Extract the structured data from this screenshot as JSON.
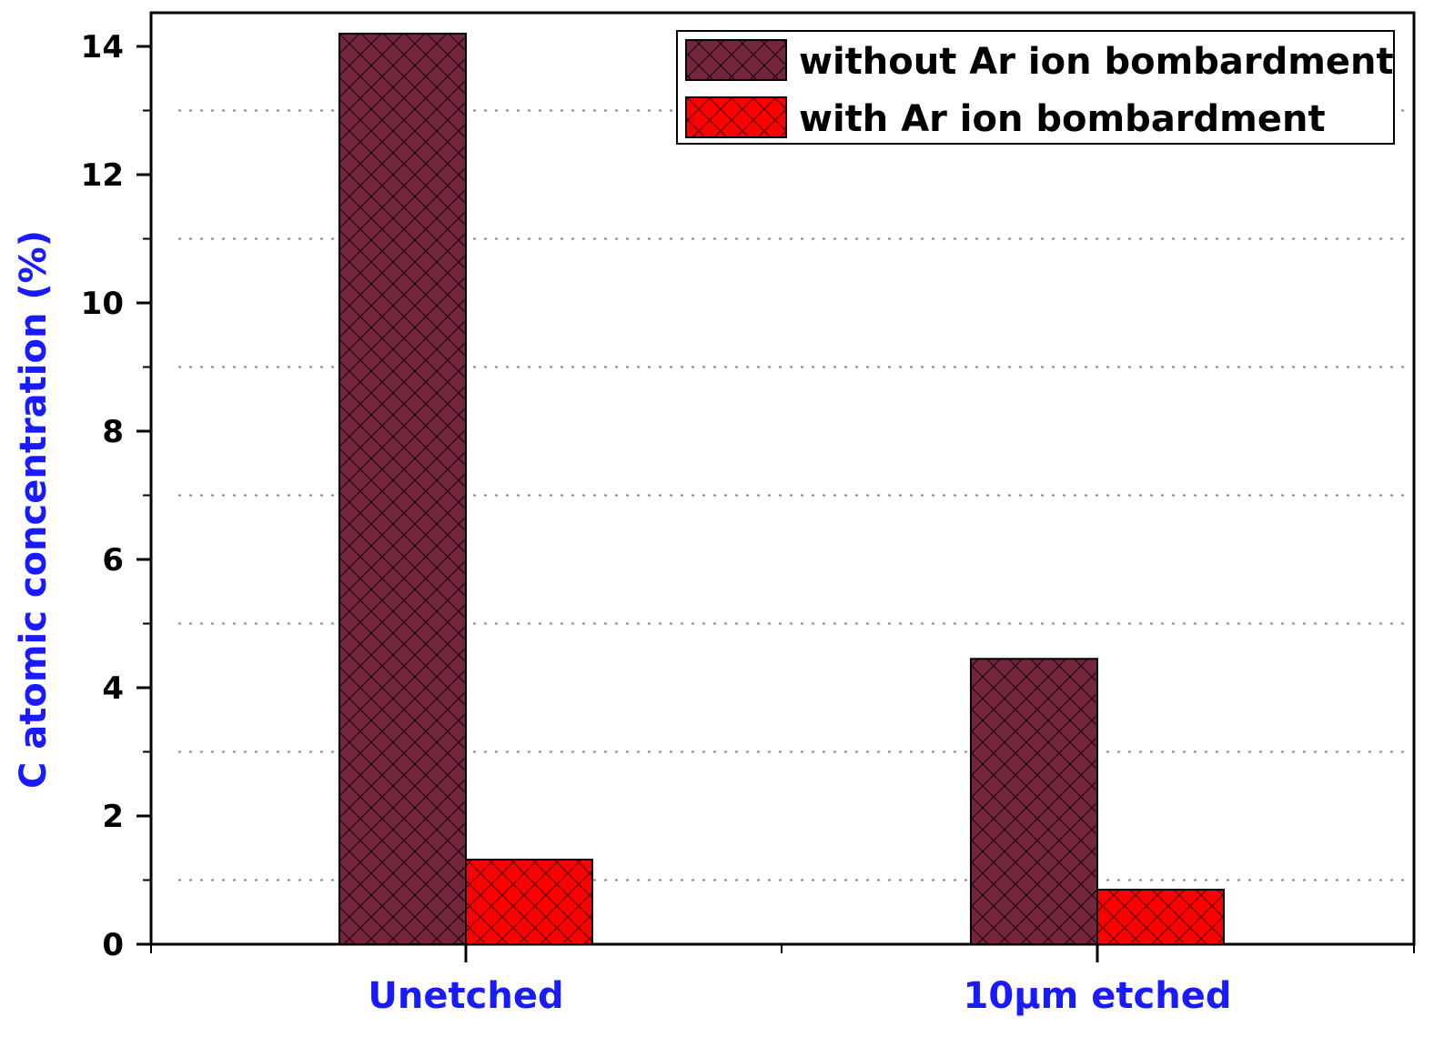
{
  "chart_data": {
    "type": "bar",
    "categories": [
      "Unetched",
      "10µm etched"
    ],
    "series": [
      {
        "name": "without Ar ion bombardment",
        "values": [
          14.2,
          4.45
        ],
        "color": "#76263c",
        "hatch": "crosshatch"
      },
      {
        "name": "with Ar ion bombardment",
        "values": [
          1.32,
          0.85
        ],
        "color": "#ff0000",
        "hatch": "crosshatch"
      }
    ],
    "title": "",
    "xlabel": "",
    "ylabel": "C atomic concentration (%)",
    "ylim": [
      0,
      14.5
    ],
    "yticks": [
      0,
      2,
      4,
      6,
      8,
      10,
      12,
      14
    ],
    "ytick_labels": [
      "0",
      "2",
      "4",
      "6",
      "8",
      "10",
      "12",
      "14"
    ],
    "minor_grid": [
      1,
      3,
      5,
      7,
      9,
      11,
      13
    ],
    "grid": "dotted horizontal at odd values",
    "legend_position": "top-right",
    "label_color": "#1a1aff"
  }
}
